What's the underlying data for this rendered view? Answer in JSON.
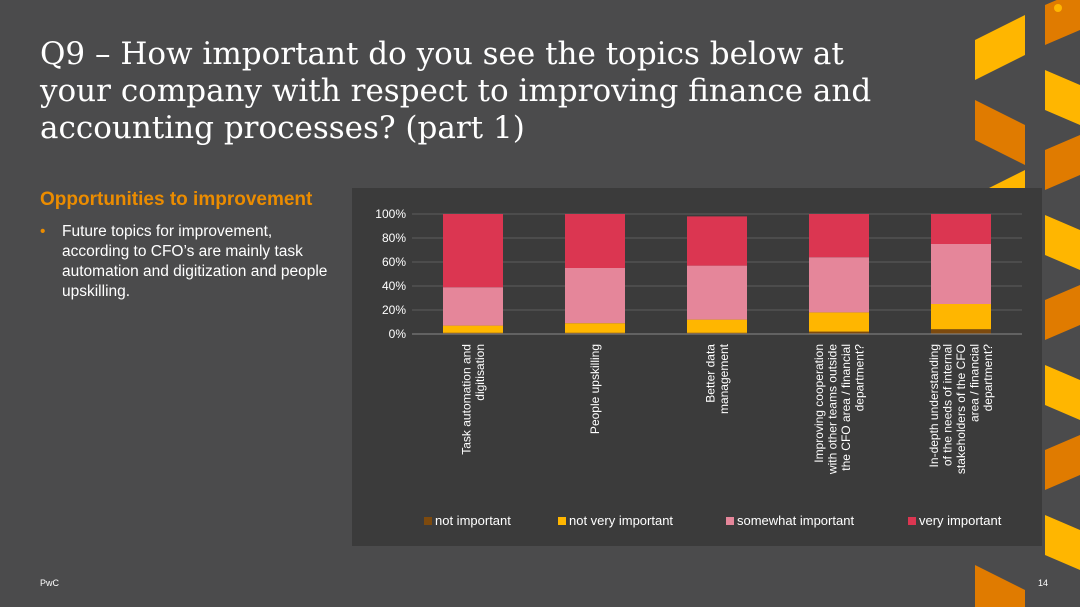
{
  "slide": {
    "title": "Q9 – How important do you see the topics below at your company with respect to improving finance and accounting processes? (part 1)",
    "subheading": "Opportunities to improvement",
    "bullets": [
      "Future topics for improvement, according to CFO’s are mainly task automation and digitization and people upskilling."
    ],
    "footer": "PwC",
    "page_number": "14"
  },
  "colors": {
    "background": "#4b4b4c",
    "chart_background": "#3b3b3b",
    "accent": "#eb8c00",
    "not_important": "#7d4a0e",
    "not_very_important": "#ffb600",
    "somewhat_important": "#e5869a",
    "very_important": "#db3651",
    "decor_light": "#ffb600",
    "decor_dark": "#e07b00"
  },
  "chart_data": {
    "type": "bar",
    "stacked": true,
    "percent": true,
    "categories": [
      [
        "Task automation and",
        "digitisation"
      ],
      [
        "People upskilling"
      ],
      [
        "Better data",
        "management"
      ],
      [
        "Improving cooperation",
        "with other teams outside",
        "the CFO area / financial",
        "department?"
      ],
      [
        "In-depth understanding",
        "of the needs of internal",
        "stakeholders of the CFO",
        "area / financial",
        "department?"
      ]
    ],
    "series": [
      {
        "name": "not important",
        "color": "#7d4a0e",
        "values": [
          1,
          1,
          1,
          2,
          4
        ]
      },
      {
        "name": "not very important",
        "color": "#ffb600",
        "values": [
          6,
          8,
          11,
          16,
          21
        ]
      },
      {
        "name": "somewhat important",
        "color": "#e5869a",
        "values": [
          32,
          46,
          45,
          46,
          50
        ]
      },
      {
        "name": "very important",
        "color": "#db3651",
        "values": [
          61,
          45,
          41,
          36,
          25
        ]
      }
    ],
    "ylim": [
      0,
      100
    ],
    "yticks": [
      "0%",
      "20%",
      "40%",
      "60%",
      "80%",
      "100%"
    ],
    "ytick_values": [
      0,
      20,
      40,
      60,
      80,
      100
    ],
    "grid": true,
    "legend_position": "bottom"
  }
}
